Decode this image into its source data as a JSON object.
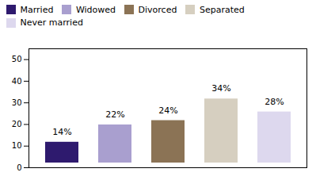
{
  "chart_data": {
    "type": "bar",
    "categories": [
      "Married",
      "Widowed",
      "Divorced",
      "Separated",
      "Never married"
    ],
    "values": [
      14,
      22,
      24,
      34,
      28
    ],
    "value_labels": [
      "14%",
      "22%",
      "24%",
      "34%",
      "28%"
    ],
    "data_labels": true,
    "colors": [
      "#2e1a6e",
      "#a99fcf",
      "#8b7355",
      "#d6cfc0",
      "#ddd8ee"
    ],
    "ylim": [
      0,
      55
    ],
    "yticks": [
      0,
      10,
      20,
      30,
      40,
      50
    ],
    "legend": "top",
    "tick_labels": "y",
    "grid": false
  }
}
